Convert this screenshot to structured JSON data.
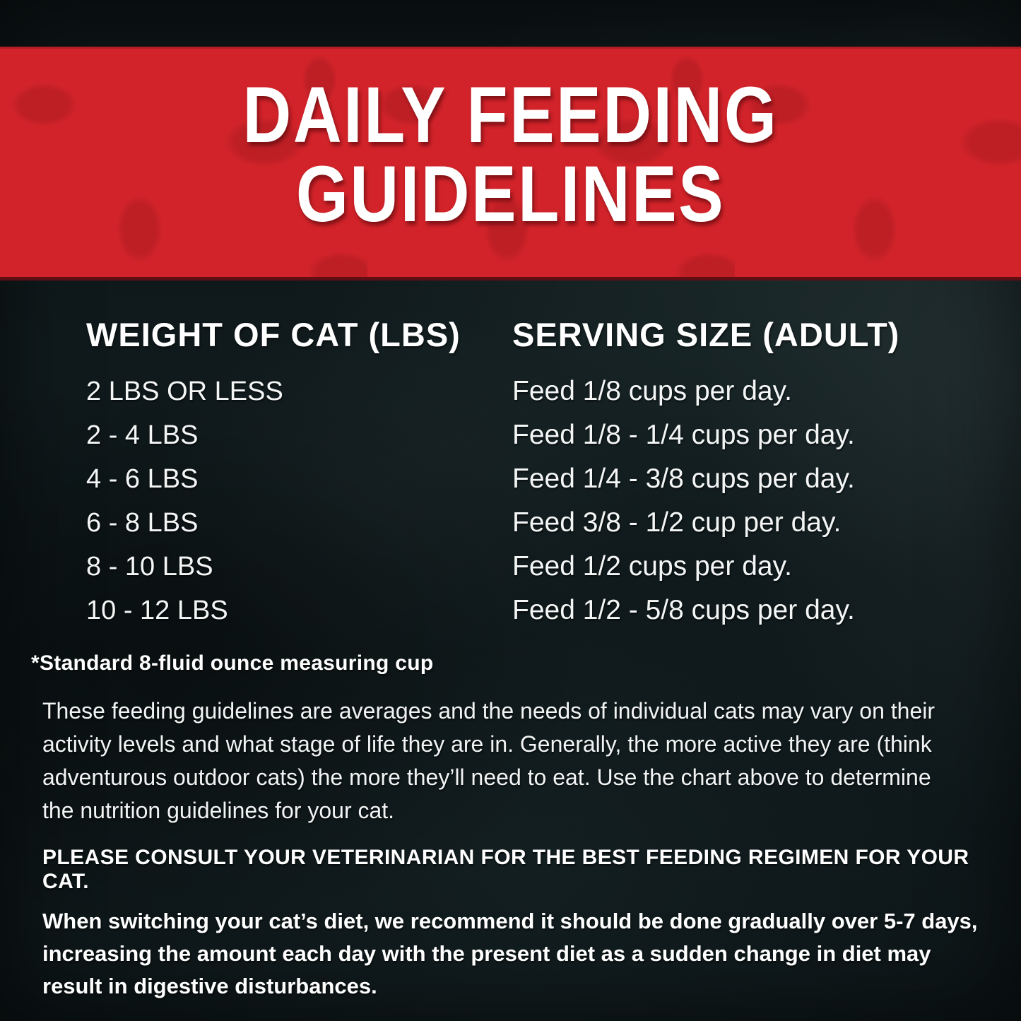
{
  "banner": {
    "title_line1": "DAILY FEEDING",
    "title_line2": "GUIDELINES",
    "background_color": "#d2232a",
    "spot_color": "#bd1f25",
    "bottom_edge_color": "#5f0f13",
    "title_color": "#ffffff"
  },
  "table": {
    "columns": [
      "WEIGHT OF CAT (LBS)",
      "SERVING SIZE (ADULT)"
    ],
    "rows": [
      {
        "weight": "2 LBS OR LESS",
        "serving": "Feed 1/8 cups per day."
      },
      {
        "weight": "2 - 4 LBS",
        "serving": "Feed 1/8 - 1/4 cups per day."
      },
      {
        "weight": "4 - 6 LBS",
        "serving": "Feed 1/4 - 3/8 cups per day."
      },
      {
        "weight": "6 - 8 LBS",
        "serving": "Feed 3/8 - 1/2 cup per day."
      },
      {
        "weight": "8 - 10 LBS",
        "serving": "Feed 1/2 cups per day."
      },
      {
        "weight": "10 - 12 LBS",
        "serving": "Feed 1/2 - 5/8 cups per day."
      }
    ]
  },
  "notes": {
    "footnote": "*Standard 8-fluid ounce measuring cup",
    "paragraph1": "These feeding guidelines are averages and the needs of individual cats may vary on their activity levels and what stage of life they are in. Generally, the more active they are (think adventurous outdoor cats) the more they’ll need to eat. Use the chart above to determine the nutrition guidelines for your cat.",
    "vet_notice": "PLEASE CONSULT YOUR VETERINARIAN FOR THE BEST FEEDING REGIMEN FOR YOUR CAT.",
    "paragraph2": "When switching your cat’s diet, we recommend it should be done gradually over 5-7 days, increasing the amount each day with the present diet as a sudden change in diet may result in digestive disturbances."
  },
  "colors": {
    "background": "#0e1719",
    "text": "#ffffff"
  }
}
